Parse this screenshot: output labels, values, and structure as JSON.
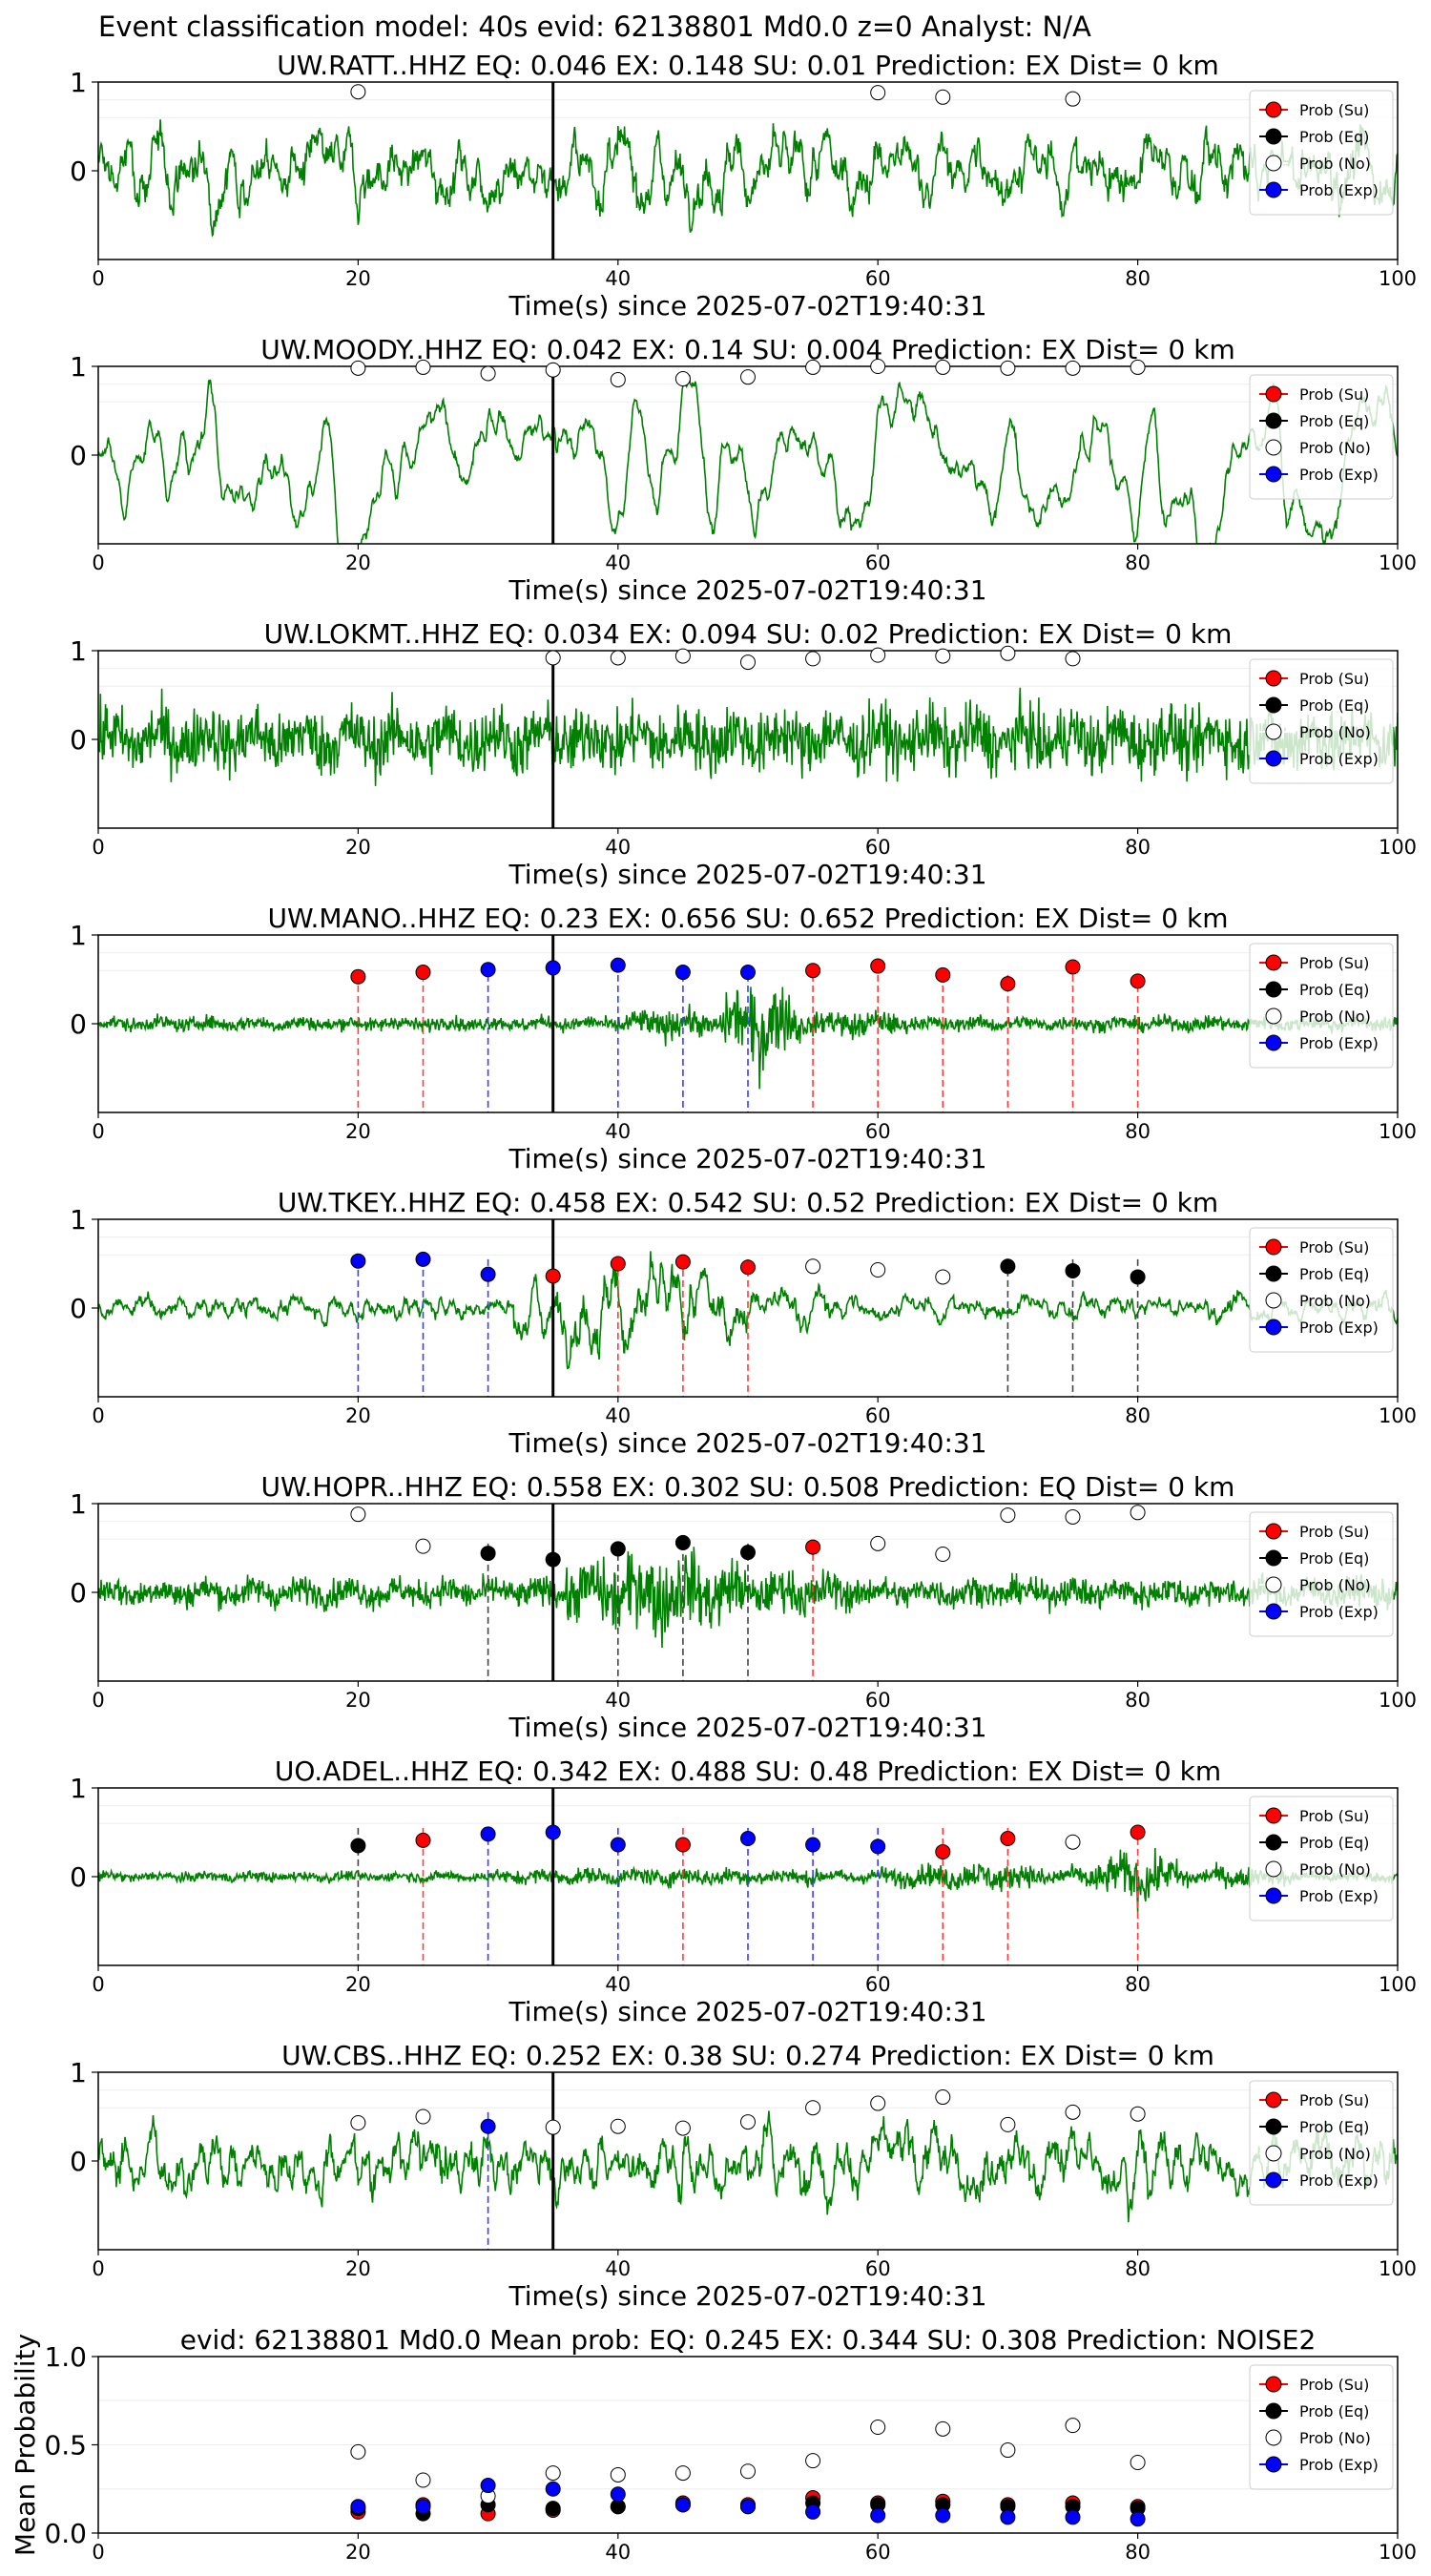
{
  "figure_title": "Event classification model: 40s evid: 62138801 Md0.0 z=0 Analyst: N/A",
  "legend_labels": [
    "Prob (Su)",
    "Prob (Eq)",
    "Prob (No)",
    "Prob (Exp)"
  ],
  "colors": {
    "trace": "#008000",
    "su": "#ff0000",
    "eq": "#000000",
    "no": "#ffffff",
    "exp": "#0000ff",
    "su_line": "#ff3b3b",
    "eq_line": "#444444",
    "exp_line": "#3b3bff"
  },
  "chart_data": [
    {
      "type": "line",
      "title": "UW.RATT..HHZ   EQ: 0.046  EX: 0.148  SU: 0.01   Prediction: EX    Dist= 0 km",
      "xlabel": "Time(s) since 2025-07-02T19:40:31",
      "ylabel": "",
      "xlim": [
        0,
        100
      ],
      "ylim": [
        -1,
        1
      ],
      "x_ticks": [
        "0",
        "20",
        "40",
        "60",
        "80",
        "100"
      ],
      "y_ticks": [
        "0",
        "1"
      ],
      "pick_time": 35,
      "trace_amp": 0.38,
      "trace_kind": "mixed",
      "trace_envelope": [],
      "points": [
        {
          "x": 20,
          "y": 0.89,
          "cls": "no"
        },
        {
          "x": 60,
          "y": 0.88,
          "cls": "no"
        },
        {
          "x": 65,
          "y": 0.83,
          "cls": "no"
        },
        {
          "x": 75,
          "y": 0.81,
          "cls": "no"
        }
      ],
      "vlines": []
    },
    {
      "type": "line",
      "title": "UW.MOODY..HHZ   EQ: 0.042  EX: 0.14  SU: 0.004   Prediction: EX    Dist= 0 km",
      "xlabel": "Time(s) since 2025-07-02T19:40:31",
      "ylabel": "",
      "xlim": [
        0,
        100
      ],
      "ylim": [
        -1,
        1
      ],
      "x_ticks": [
        "0",
        "20",
        "40",
        "60",
        "80",
        "100"
      ],
      "y_ticks": [
        "0",
        "1"
      ],
      "pick_time": 35,
      "trace_amp": 0.55,
      "trace_kind": "smooth",
      "trace_envelope": [],
      "points": [
        {
          "x": 20,
          "y": 0.98,
          "cls": "no"
        },
        {
          "x": 25,
          "y": 0.99,
          "cls": "no"
        },
        {
          "x": 30,
          "y": 0.92,
          "cls": "no"
        },
        {
          "x": 35,
          "y": 0.96,
          "cls": "no"
        },
        {
          "x": 40,
          "y": 0.85,
          "cls": "no"
        },
        {
          "x": 45,
          "y": 0.86,
          "cls": "no"
        },
        {
          "x": 50,
          "y": 0.88,
          "cls": "no"
        },
        {
          "x": 55,
          "y": 0.99,
          "cls": "no"
        },
        {
          "x": 60,
          "y": 1.0,
          "cls": "no"
        },
        {
          "x": 65,
          "y": 0.99,
          "cls": "no"
        },
        {
          "x": 70,
          "y": 0.98,
          "cls": "no"
        },
        {
          "x": 75,
          "y": 0.98,
          "cls": "no"
        },
        {
          "x": 80,
          "y": 0.99,
          "cls": "no"
        }
      ],
      "vlines": []
    },
    {
      "type": "line",
      "title": "UW.LOKMT..HHZ   EQ: 0.034  EX: 0.094  SU: 0.02   Prediction: EX    Dist= 0 km",
      "xlabel": "Time(s) since 2025-07-02T19:40:31",
      "ylabel": "",
      "xlim": [
        0,
        100
      ],
      "ylim": [
        -1,
        1
      ],
      "x_ticks": [
        "0",
        "20",
        "40",
        "60",
        "80",
        "100"
      ],
      "y_ticks": [
        "0",
        "1"
      ],
      "pick_time": 35,
      "trace_amp": 0.45,
      "trace_kind": "noisy",
      "trace_envelope": [],
      "points": [
        {
          "x": 35,
          "y": 0.92,
          "cls": "no"
        },
        {
          "x": 40,
          "y": 0.92,
          "cls": "no"
        },
        {
          "x": 45,
          "y": 0.94,
          "cls": "no"
        },
        {
          "x": 50,
          "y": 0.87,
          "cls": "no"
        },
        {
          "x": 55,
          "y": 0.91,
          "cls": "no"
        },
        {
          "x": 60,
          "y": 0.95,
          "cls": "no"
        },
        {
          "x": 65,
          "y": 0.94,
          "cls": "no"
        },
        {
          "x": 70,
          "y": 0.97,
          "cls": "no"
        },
        {
          "x": 75,
          "y": 0.91,
          "cls": "no"
        }
      ],
      "vlines": []
    },
    {
      "type": "line",
      "title": "UW.MANO..HHZ   EQ: 0.23  EX: 0.656  SU: 0.652   Prediction: EX    Dist= 0 km",
      "xlabel": "Time(s) since 2025-07-02T19:40:31",
      "ylabel": "",
      "xlim": [
        0,
        100
      ],
      "ylim": [
        -1,
        1
      ],
      "x_ticks": [
        "0",
        "20",
        "40",
        "60",
        "80",
        "100"
      ],
      "y_ticks": [
        "0",
        "1"
      ],
      "pick_time": 35,
      "trace_amp": 0.1,
      "trace_kind": "noisy",
      "trace_envelope": [
        [
          40,
          48,
          2.2
        ],
        [
          48,
          54,
          6.5
        ],
        [
          54,
          62,
          2.0
        ]
      ],
      "points": [
        {
          "x": 20,
          "y": 0.53,
          "cls": "su"
        },
        {
          "x": 25,
          "y": 0.58,
          "cls": "su"
        },
        {
          "x": 30,
          "y": 0.61,
          "cls": "exp"
        },
        {
          "x": 35,
          "y": 0.63,
          "cls": "exp"
        },
        {
          "x": 40,
          "y": 0.66,
          "cls": "exp"
        },
        {
          "x": 45,
          "y": 0.58,
          "cls": "exp"
        },
        {
          "x": 50,
          "y": 0.58,
          "cls": "exp"
        },
        {
          "x": 55,
          "y": 0.6,
          "cls": "su"
        },
        {
          "x": 60,
          "y": 0.65,
          "cls": "su"
        },
        {
          "x": 65,
          "y": 0.55,
          "cls": "su"
        },
        {
          "x": 70,
          "y": 0.45,
          "cls": "su"
        },
        {
          "x": 75,
          "y": 0.64,
          "cls": "su"
        },
        {
          "x": 80,
          "y": 0.48,
          "cls": "su"
        }
      ],
      "vlines": [
        {
          "x": 20,
          "cls": "su"
        },
        {
          "x": 25,
          "cls": "su"
        },
        {
          "x": 30,
          "cls": "exp"
        },
        {
          "x": 40,
          "cls": "exp"
        },
        {
          "x": 45,
          "cls": "exp"
        },
        {
          "x": 50,
          "cls": "exp"
        },
        {
          "x": 55,
          "cls": "su"
        },
        {
          "x": 60,
          "cls": "su"
        },
        {
          "x": 65,
          "cls": "su"
        },
        {
          "x": 70,
          "cls": "su"
        },
        {
          "x": 75,
          "cls": "su"
        },
        {
          "x": 80,
          "cls": "su"
        }
      ]
    },
    {
      "type": "line",
      "title": "UW.TKEY..HHZ   EQ: 0.458  EX: 0.542  SU: 0.52   Prediction: EX    Dist= 0 km",
      "xlabel": "Time(s) since 2025-07-02T19:40:31",
      "ylabel": "",
      "xlim": [
        0,
        100
      ],
      "ylim": [
        -1,
        1
      ],
      "x_ticks": [
        "0",
        "20",
        "40",
        "60",
        "80",
        "100"
      ],
      "y_ticks": [
        "0",
        "1"
      ],
      "pick_time": 35,
      "trace_amp": 0.14,
      "trace_kind": "mixed",
      "trace_envelope": [
        [
          32,
          50,
          3.5
        ],
        [
          50,
          58,
          1.8
        ]
      ],
      "points": [
        {
          "x": 20,
          "y": 0.53,
          "cls": "exp"
        },
        {
          "x": 25,
          "y": 0.55,
          "cls": "exp"
        },
        {
          "x": 30,
          "y": 0.38,
          "cls": "exp"
        },
        {
          "x": 35,
          "y": 0.36,
          "cls": "su"
        },
        {
          "x": 40,
          "y": 0.5,
          "cls": "su"
        },
        {
          "x": 45,
          "y": 0.52,
          "cls": "su"
        },
        {
          "x": 50,
          "y": 0.46,
          "cls": "su"
        },
        {
          "x": 55,
          "y": 0.47,
          "cls": "no"
        },
        {
          "x": 60,
          "y": 0.43,
          "cls": "no"
        },
        {
          "x": 65,
          "y": 0.35,
          "cls": "no"
        },
        {
          "x": 70,
          "y": 0.47,
          "cls": "eq"
        },
        {
          "x": 75,
          "y": 0.42,
          "cls": "eq"
        },
        {
          "x": 80,
          "y": 0.35,
          "cls": "eq"
        }
      ],
      "vlines": [
        {
          "x": 20,
          "cls": "exp"
        },
        {
          "x": 25,
          "cls": "exp"
        },
        {
          "x": 30,
          "cls": "exp"
        },
        {
          "x": 40,
          "cls": "su"
        },
        {
          "x": 45,
          "cls": "su"
        },
        {
          "x": 50,
          "cls": "su"
        },
        {
          "x": 70,
          "cls": "eq"
        },
        {
          "x": 75,
          "cls": "eq"
        },
        {
          "x": 80,
          "cls": "eq"
        }
      ]
    },
    {
      "type": "line",
      "title": "UW.HOPR..HHZ   EQ: 0.558  EX: 0.302  SU: 0.508   Prediction: EQ    Dist= 0 km",
      "xlabel": "Time(s) since 2025-07-02T19:40:31",
      "ylabel": "",
      "xlim": [
        0,
        100
      ],
      "ylim": [
        -1,
        1
      ],
      "x_ticks": [
        "0",
        "20",
        "40",
        "60",
        "80",
        "100"
      ],
      "y_ticks": [
        "0",
        "1"
      ],
      "pick_time": 35,
      "trace_amp": 0.2,
      "trace_kind": "noisy",
      "trace_envelope": [
        [
          36,
          50,
          3.0
        ],
        [
          50,
          58,
          1.6
        ]
      ],
      "points": [
        {
          "x": 20,
          "y": 0.88,
          "cls": "no"
        },
        {
          "x": 25,
          "y": 0.52,
          "cls": "no"
        },
        {
          "x": 30,
          "y": 0.44,
          "cls": "eq"
        },
        {
          "x": 35,
          "y": 0.37,
          "cls": "eq"
        },
        {
          "x": 40,
          "y": 0.49,
          "cls": "eq"
        },
        {
          "x": 45,
          "y": 0.56,
          "cls": "eq"
        },
        {
          "x": 50,
          "y": 0.45,
          "cls": "eq"
        },
        {
          "x": 55,
          "y": 0.51,
          "cls": "su"
        },
        {
          "x": 60,
          "y": 0.55,
          "cls": "no"
        },
        {
          "x": 65,
          "y": 0.43,
          "cls": "no"
        },
        {
          "x": 70,
          "y": 0.87,
          "cls": "no"
        },
        {
          "x": 75,
          "y": 0.85,
          "cls": "no"
        },
        {
          "x": 80,
          "y": 0.9,
          "cls": "no"
        }
      ],
      "vlines": [
        {
          "x": 30,
          "cls": "eq"
        },
        {
          "x": 40,
          "cls": "eq"
        },
        {
          "x": 45,
          "cls": "eq"
        },
        {
          "x": 50,
          "cls": "eq"
        },
        {
          "x": 55,
          "cls": "su"
        }
      ]
    },
    {
      "type": "line",
      "title": "UO.ADEL..HHZ   EQ: 0.342  EX: 0.488  SU: 0.48   Prediction: EX    Dist= 0 km",
      "xlabel": "Time(s) since 2025-07-02T19:40:31",
      "ylabel": "",
      "xlim": [
        0,
        100
      ],
      "ylim": [
        -1,
        1
      ],
      "x_ticks": [
        "0",
        "20",
        "40",
        "60",
        "80",
        "100"
      ],
      "y_ticks": [
        "0",
        "1"
      ],
      "pick_time": 35,
      "trace_amp": 0.07,
      "trace_kind": "noisy",
      "trace_envelope": [
        [
          30,
          60,
          1.8
        ],
        [
          60,
          76,
          2.8
        ],
        [
          76,
          84,
          5.0
        ],
        [
          84,
          92,
          2.2
        ]
      ],
      "points": [
        {
          "x": 20,
          "y": 0.35,
          "cls": "eq"
        },
        {
          "x": 25,
          "y": 0.41,
          "cls": "su"
        },
        {
          "x": 30,
          "y": 0.48,
          "cls": "exp"
        },
        {
          "x": 35,
          "y": 0.5,
          "cls": "exp"
        },
        {
          "x": 40,
          "y": 0.36,
          "cls": "exp"
        },
        {
          "x": 45,
          "y": 0.36,
          "cls": "su"
        },
        {
          "x": 50,
          "y": 0.43,
          "cls": "exp"
        },
        {
          "x": 55,
          "y": 0.36,
          "cls": "exp"
        },
        {
          "x": 60,
          "y": 0.34,
          "cls": "exp"
        },
        {
          "x": 65,
          "y": 0.28,
          "cls": "su"
        },
        {
          "x": 70,
          "y": 0.43,
          "cls": "su"
        },
        {
          "x": 75,
          "y": 0.39,
          "cls": "no"
        },
        {
          "x": 80,
          "y": 0.5,
          "cls": "su"
        }
      ],
      "vlines": [
        {
          "x": 20,
          "cls": "eq"
        },
        {
          "x": 25,
          "cls": "su"
        },
        {
          "x": 30,
          "cls": "exp"
        },
        {
          "x": 40,
          "cls": "exp"
        },
        {
          "x": 45,
          "cls": "su"
        },
        {
          "x": 50,
          "cls": "exp"
        },
        {
          "x": 55,
          "cls": "exp"
        },
        {
          "x": 60,
          "cls": "exp"
        },
        {
          "x": 65,
          "cls": "su"
        },
        {
          "x": 70,
          "cls": "su"
        },
        {
          "x": 80,
          "cls": "su"
        }
      ]
    },
    {
      "type": "line",
      "title": "UW.CBS..HHZ   EQ: 0.252  EX: 0.38  SU: 0.274   Prediction: EX    Dist= 0 km",
      "xlabel": "Time(s) since 2025-07-02T19:40:31",
      "ylabel": "",
      "xlim": [
        0,
        100
      ],
      "ylim": [
        -1,
        1
      ],
      "x_ticks": [
        "0",
        "20",
        "40",
        "60",
        "80",
        "100"
      ],
      "y_ticks": [
        "0",
        "1"
      ],
      "pick_time": 35,
      "trace_amp": 0.35,
      "trace_kind": "mixed",
      "trace_envelope": [],
      "points": [
        {
          "x": 20,
          "y": 0.43,
          "cls": "no"
        },
        {
          "x": 25,
          "y": 0.5,
          "cls": "no"
        },
        {
          "x": 30,
          "y": 0.39,
          "cls": "exp"
        },
        {
          "x": 35,
          "y": 0.38,
          "cls": "no"
        },
        {
          "x": 40,
          "y": 0.39,
          "cls": "no"
        },
        {
          "x": 45,
          "y": 0.37,
          "cls": "no"
        },
        {
          "x": 50,
          "y": 0.44,
          "cls": "no"
        },
        {
          "x": 55,
          "y": 0.6,
          "cls": "no"
        },
        {
          "x": 60,
          "y": 0.65,
          "cls": "no"
        },
        {
          "x": 65,
          "y": 0.72,
          "cls": "no"
        },
        {
          "x": 70,
          "y": 0.41,
          "cls": "no"
        },
        {
          "x": 75,
          "y": 0.55,
          "cls": "no"
        },
        {
          "x": 80,
          "y": 0.53,
          "cls": "no"
        }
      ],
      "vlines": [
        {
          "x": 30,
          "cls": "exp"
        }
      ]
    },
    {
      "type": "scatter",
      "title": "evid: 62138801  Md0.0   Mean prob:    EQ: 0.245  EX: 0.344  SU: 0.308    Prediction: NOISE2",
      "xlabel": "",
      "ylabel": "Mean Probability",
      "xlim": [
        0,
        100
      ],
      "ylim": [
        0,
        1
      ],
      "x_ticks": [
        "0",
        "20",
        "40",
        "60",
        "80",
        "100"
      ],
      "y_ticks": [
        "0.0",
        "0.5",
        "1.0"
      ],
      "x": [
        20,
        25,
        30,
        35,
        40,
        45,
        50,
        55,
        60,
        65,
        70,
        75,
        80
      ],
      "series": [
        {
          "name": "Prob (Su)",
          "cls": "su",
          "values": [
            0.12,
            0.16,
            0.11,
            0.13,
            0.15,
            0.17,
            0.16,
            0.2,
            0.17,
            0.18,
            0.16,
            0.17,
            0.15
          ]
        },
        {
          "name": "Prob (Eq)",
          "cls": "eq",
          "values": [
            0.14,
            0.11,
            0.16,
            0.14,
            0.15,
            0.16,
            0.15,
            0.17,
            0.16,
            0.16,
            0.15,
            0.15,
            0.14
          ]
        },
        {
          "name": "Prob (No)",
          "cls": "no",
          "values": [
            0.46,
            0.3,
            0.21,
            0.34,
            0.33,
            0.34,
            0.35,
            0.41,
            0.6,
            0.59,
            0.47,
            0.61,
            0.4
          ]
        },
        {
          "name": "Prob (Exp)",
          "cls": "exp",
          "values": [
            0.15,
            0.15,
            0.27,
            0.25,
            0.22,
            0.16,
            0.15,
            0.12,
            0.1,
            0.1,
            0.09,
            0.09,
            0.08
          ]
        }
      ]
    }
  ]
}
